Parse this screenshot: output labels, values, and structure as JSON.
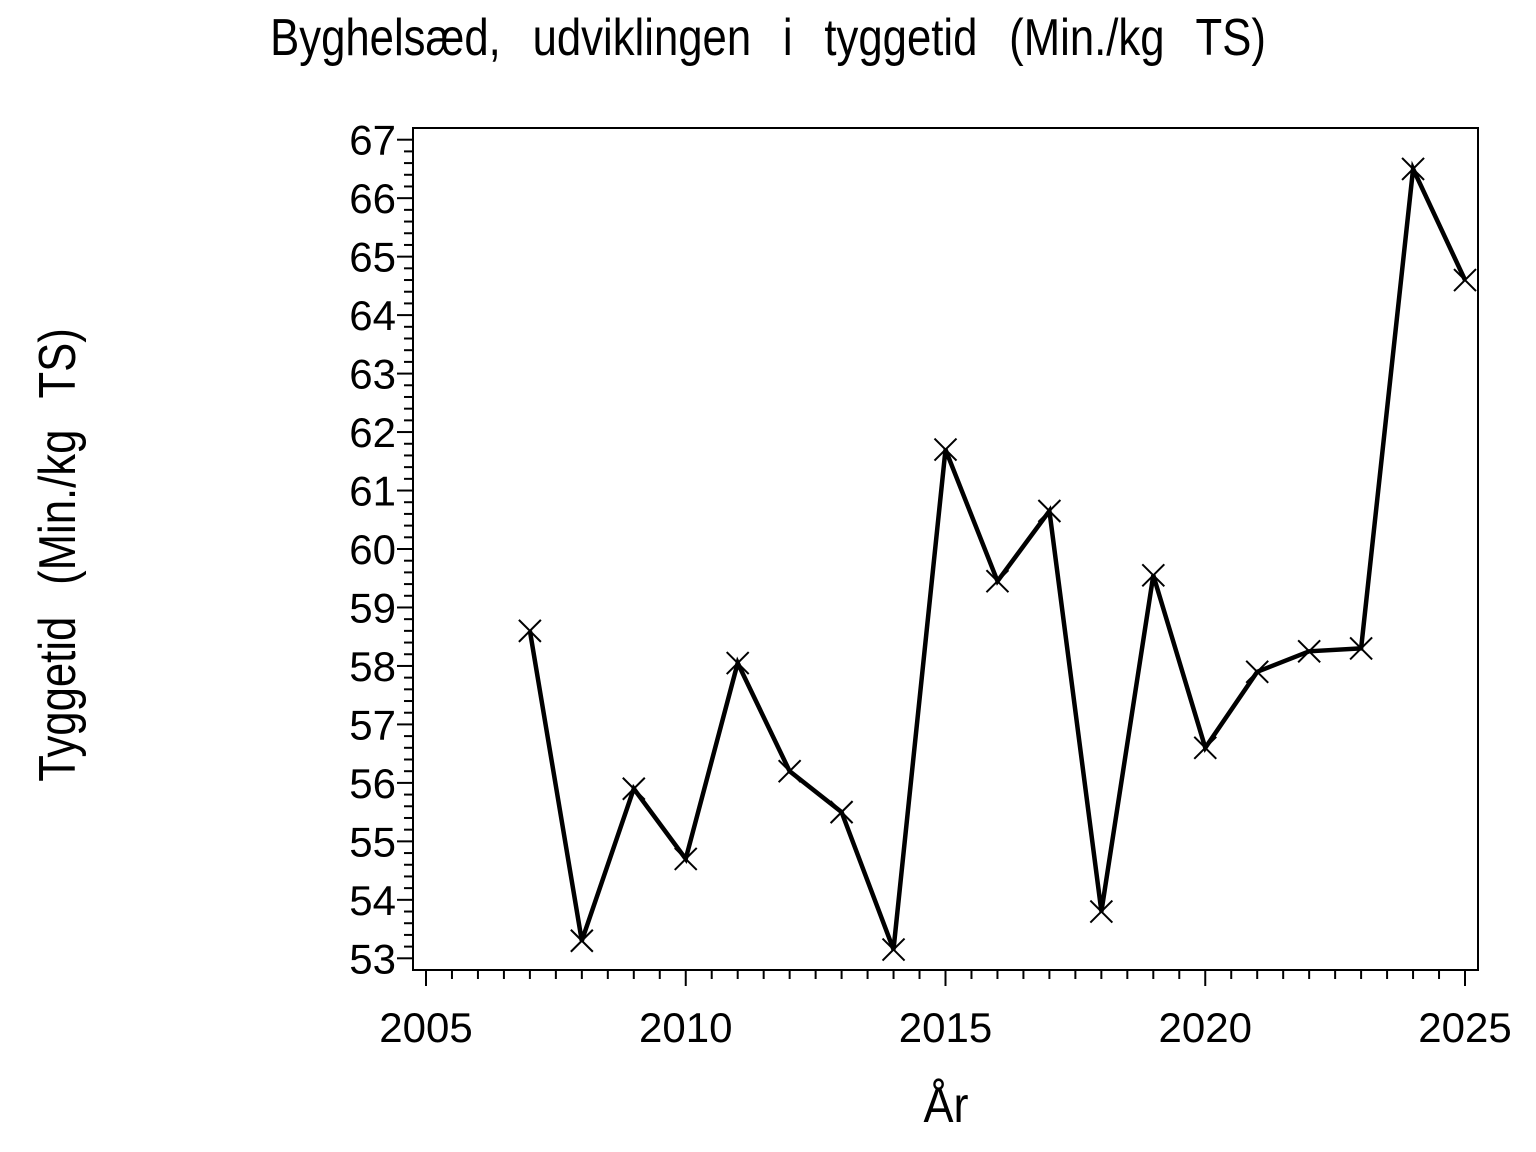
{
  "page": {
    "background": "#ffffff",
    "foreground": "#000000"
  },
  "chart_data": {
    "type": "line",
    "title": "Byghelsæd, udviklingen i tyggetid (Min./kg TS)",
    "xlabel": "År",
    "ylabel": "Tyggetid (Min./kg TS)",
    "grid": false,
    "legend": "none",
    "xlim": [
      2004.75,
      2025.25
    ],
    "ylim": [
      52.8,
      67.2
    ],
    "xticks_major": [
      2005,
      2010,
      2015,
      2020,
      2025
    ],
    "xtick_minor_step": 0.5,
    "yticks_major": [
      53,
      54,
      55,
      56,
      57,
      58,
      59,
      60,
      61,
      62,
      63,
      64,
      65,
      66,
      67
    ],
    "ytick_minor_step": 0.2,
    "series": [
      {
        "name": "Tyggetid",
        "color": "#000000",
        "marker": "x",
        "x": [
          2007,
          2008,
          2009,
          2010,
          2011,
          2012,
          2013,
          2014,
          2015,
          2016,
          2017,
          2018,
          2019,
          2020,
          2021,
          2022,
          2023,
          2024,
          2025
        ],
        "y": [
          58.6,
          53.3,
          55.9,
          54.7,
          58.05,
          56.2,
          55.5,
          53.15,
          61.7,
          59.45,
          60.65,
          53.8,
          59.55,
          56.6,
          57.9,
          58.25,
          58.3,
          66.5,
          64.6
        ]
      }
    ]
  }
}
